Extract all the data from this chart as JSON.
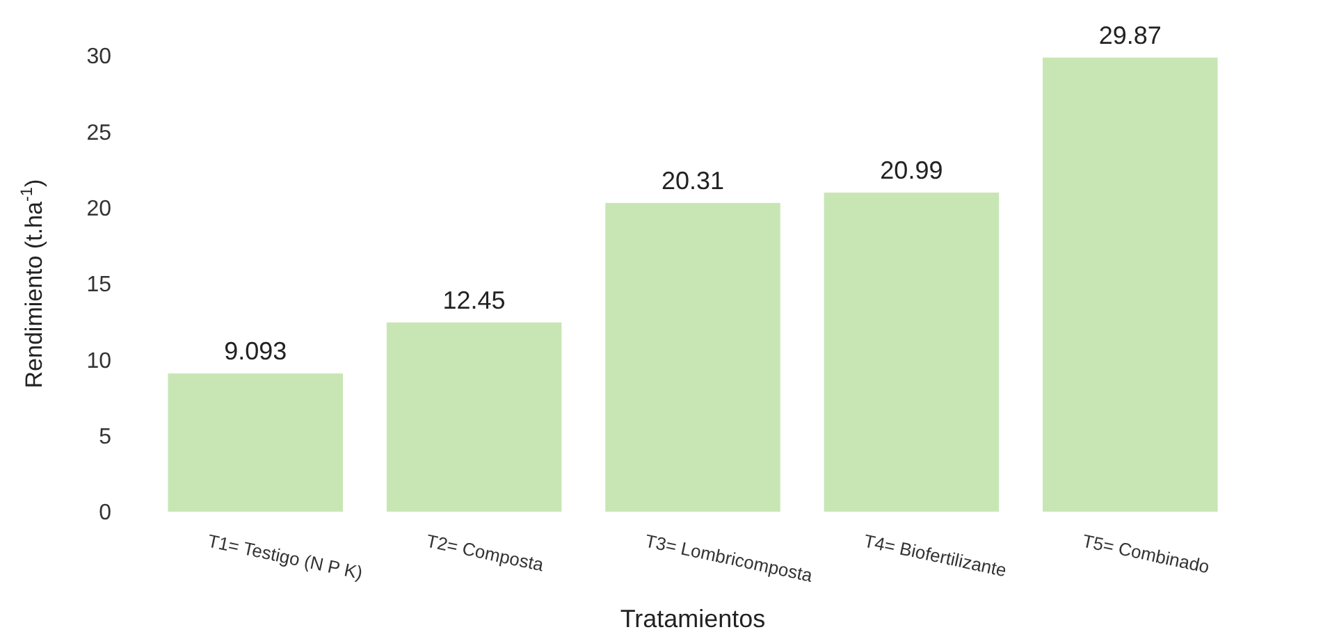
{
  "chart_data": {
    "type": "bar",
    "xlabel": "Tratamientos",
    "ylabel": "Rendimiento  (t.ha$^{-1}$)",
    "categories": [
      "T1= Testigo (N P K)",
      "T2= Composta",
      "T3= Lombricomposta",
      "T4= Biofertilizante",
      "T5= Combinado"
    ],
    "values": [
      9.093,
      12.45,
      20.31,
      20.99,
      29.87
    ],
    "color": "#c8e6b4",
    "data_labels": true,
    "ylim": [
      0,
      30
    ],
    "yticks": [
      0,
      5,
      10,
      15,
      20,
      25,
      30
    ],
    "grid": false
  }
}
